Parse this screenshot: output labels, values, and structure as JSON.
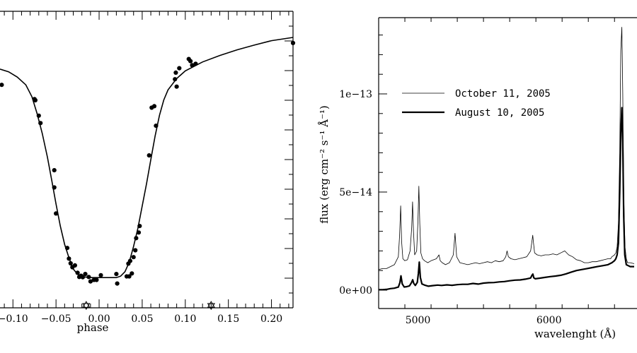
{
  "chart_data": [
    {
      "type": "scatter",
      "title": "",
      "xlabel": "phase",
      "ylabel": "",
      "xlim": [
        -0.115,
        0.225
      ],
      "ylim": [
        0,
        1
      ],
      "x_ticks": [
        -0.1,
        -0.05,
        0.0,
        0.05,
        0.1,
        0.15,
        0.2
      ],
      "x_tick_labels": [
        "−0.10",
        "−0.05",
        "0.00",
        "0.05",
        "0.10",
        "0.15",
        "0.20"
      ],
      "series": [
        {
          "kind": "points",
          "x": [
            -0.113,
            -0.075,
            -0.074,
            -0.07,
            -0.068,
            -0.052,
            -0.052,
            -0.05,
            -0.037,
            -0.035,
            -0.033,
            -0.031,
            -0.028,
            -0.025,
            -0.023,
            -0.021,
            -0.019,
            -0.016,
            -0.012,
            -0.01,
            -0.006,
            -0.003,
            0.002,
            0.02,
            0.021,
            0.032,
            0.034,
            0.035,
            0.036,
            0.038,
            0.04,
            0.042,
            0.043,
            0.046,
            0.047,
            0.058,
            0.061,
            0.064,
            0.066,
            0.088,
            0.089,
            0.09,
            0.093,
            0.104,
            0.106,
            0.108,
            0.112,
            0.225
          ],
          "y": [
            0.752,
            0.704,
            0.7,
            0.648,
            0.623,
            0.464,
            0.406,
            0.318,
            0.202,
            0.166,
            0.15,
            0.137,
            0.143,
            0.118,
            0.104,
            0.108,
            0.103,
            0.114,
            0.104,
            0.089,
            0.094,
            0.094,
            0.11,
            0.114,
            0.082,
            0.106,
            0.149,
            0.106,
            0.158,
            0.116,
            0.171,
            0.194,
            0.235,
            0.254,
            0.276,
            0.514,
            0.675,
            0.68,
            0.614,
            0.771,
            0.793,
            0.746,
            0.808,
            0.839,
            0.832,
            0.818,
            0.823,
            0.893
          ]
        },
        {
          "kind": "line",
          "x": [
            -0.115,
            -0.105,
            -0.095,
            -0.085,
            -0.078,
            -0.072,
            -0.066,
            -0.06,
            -0.055,
            -0.05,
            -0.045,
            -0.04,
            -0.035,
            -0.03,
            -0.025,
            -0.02,
            -0.01,
            0.0,
            0.01,
            0.02,
            0.025,
            0.03,
            0.035,
            0.04,
            0.045,
            0.05,
            0.055,
            0.06,
            0.065,
            0.07,
            0.075,
            0.08,
            0.09,
            0.1,
            0.12,
            0.14,
            0.16,
            0.18,
            0.2,
            0.225
          ],
          "y": [
            0.805,
            0.796,
            0.778,
            0.752,
            0.712,
            0.655,
            0.588,
            0.508,
            0.43,
            0.351,
            0.276,
            0.214,
            0.169,
            0.131,
            0.113,
            0.105,
            0.102,
            0.102,
            0.102,
            0.102,
            0.107,
            0.122,
            0.154,
            0.207,
            0.268,
            0.343,
            0.418,
            0.5,
            0.58,
            0.649,
            0.701,
            0.735,
            0.773,
            0.799,
            0.829,
            0.851,
            0.87,
            0.886,
            0.901,
            0.912
          ]
        },
        {
          "kind": "markers",
          "symbol": "star",
          "x": [
            -0.015,
            0.13
          ],
          "y": [
            0.008,
            0.008
          ]
        }
      ]
    },
    {
      "type": "line",
      "title": "",
      "xlabel": "wavelenght (Å)",
      "ylabel": "flux (erg cm⁻² s⁻¹ Å⁻¹)",
      "xlim": [
        4700,
        6650
      ],
      "ylim": [
        -1e-14,
        1.4e-13
      ],
      "x_ticks": [
        5000,
        6000
      ],
      "x_tick_labels": [
        "5000",
        "6000"
      ],
      "y_ticks": [
        0,
        5e-14,
        1e-13
      ],
      "y_tick_labels": [
        "0e+00",
        "5e−14",
        "1e−13"
      ],
      "legend_position": "top-left",
      "series": [
        {
          "name": "October 11, 2005",
          "color": "#000000",
          "stroke": "thin",
          "x": [
            4700,
            4730,
            4760,
            4790,
            4820,
            4850,
            4860,
            4868,
            4875,
            4885,
            4900,
            4920,
            4940,
            4952,
            4959,
            4966,
            4975,
            4990,
            5000,
            5007,
            5014,
            5022,
            5035,
            5050,
            5075,
            5100,
            5140,
            5160,
            5170,
            5185,
            5210,
            5240,
            5270,
            5283,
            5295,
            5320,
            5350,
            5380,
            5410,
            5440,
            5470,
            5500,
            5530,
            5560,
            5590,
            5620,
            5650,
            5670,
            5680,
            5690,
            5710,
            5740,
            5770,
            5800,
            5830,
            5860,
            5870,
            5876,
            5882,
            5890,
            5910,
            5940,
            5970,
            6000,
            6030,
            6060,
            6090,
            6120,
            6150,
            6180,
            6210,
            6240,
            6270,
            6300,
            6330,
            6360,
            6390,
            6420,
            6450,
            6470,
            6480,
            6490,
            6500,
            6510,
            6520,
            6530,
            6540,
            6548,
            6556,
            6563,
            6570,
            6580,
            6590,
            6600,
            6620,
            6650
          ],
          "y": [
            1.05e-14,
            1.1e-14,
            1.1e-14,
            1.2e-14,
            1.3e-14,
            1.7e-14,
            2.8e-14,
            4.3e-14,
            2.5e-14,
            1.6e-14,
            1.5e-14,
            1.55e-14,
            2e-14,
            3.2e-14,
            4.5e-14,
            3e-14,
            1.8e-14,
            2e-14,
            3.5e-14,
            5.3e-14,
            3.4e-14,
            1.9e-14,
            1.6e-14,
            1.5e-14,
            1.4e-14,
            1.5e-14,
            1.6e-14,
            1.8e-14,
            1.5e-14,
            1.4e-14,
            1.3e-14,
            1.4e-14,
            1.8e-14,
            2.9e-14,
            1.7e-14,
            1.4e-14,
            1.35e-14,
            1.3e-14,
            1.35e-14,
            1.4e-14,
            1.35e-14,
            1.4e-14,
            1.45e-14,
            1.4e-14,
            1.5e-14,
            1.45e-14,
            1.5e-14,
            1.7e-14,
            2e-14,
            1.7e-14,
            1.6e-14,
            1.55e-14,
            1.6e-14,
            1.65e-14,
            1.7e-14,
            2e-14,
            2.5e-14,
            2.8e-14,
            2.4e-14,
            1.9e-14,
            1.8e-14,
            1.75e-14,
            1.8e-14,
            1.8e-14,
            1.85e-14,
            1.8e-14,
            1.9e-14,
            2e-14,
            1.8e-14,
            1.7e-14,
            1.55e-14,
            1.5e-14,
            1.4e-14,
            1.4e-14,
            1.45e-14,
            1.45e-14,
            1.5e-14,
            1.55e-14,
            1.6e-14,
            1.6e-14,
            1.7e-14,
            1.75e-14,
            1.8e-14,
            1.9e-14,
            2.2e-14,
            3.4e-14,
            7e-14,
            1.22e-13,
            1.34e-13,
            1e-13,
            5e-14,
            2.2e-14,
            1.6e-14,
            1.4e-14,
            1.4e-14,
            1.35e-14
          ]
        },
        {
          "name": "August 10, 2005",
          "color": "#000000",
          "stroke": "thick",
          "x": [
            4700,
            4730,
            4760,
            4790,
            4820,
            4850,
            4862,
            4870,
            4880,
            4895,
            4915,
            4935,
            4950,
            4960,
            4968,
            4980,
            4995,
            5003,
            5010,
            5018,
            5030,
            5050,
            5080,
            5110,
            5150,
            5180,
            5220,
            5260,
            5300,
            5340,
            5380,
            5420,
            5460,
            5500,
            5540,
            5580,
            5620,
            5660,
            5700,
            5740,
            5780,
            5820,
            5860,
            5870,
            5877,
            5884,
            5895,
            5930,
            5970,
            6010,
            6050,
            6090,
            6130,
            6170,
            6210,
            6250,
            6290,
            6330,
            6370,
            6410,
            6450,
            6480,
            6500,
            6510,
            6520,
            6530,
            6540,
            6548,
            6556,
            6563,
            6570,
            6578,
            6590,
            6605,
            6620,
            6650
          ],
          "y": [
            2e-16,
            2e-16,
            4e-16,
            8e-16,
            1e-15,
            1.6e-15,
            3.8e-15,
            7.3e-15,
            3.2e-15,
            1.6e-15,
            1.8e-15,
            2.2e-15,
            3.8e-15,
            5.3e-15,
            3.4e-15,
            2.4e-15,
            4e-15,
            8.5e-15,
            1.43e-14,
            6.5e-15,
            3.2e-15,
            2.6e-15,
            2e-15,
            2.3e-15,
            2.6e-15,
            2.4e-15,
            2.7e-15,
            2.5e-15,
            2.8e-15,
            3e-15,
            3e-15,
            3.4e-15,
            3.1e-15,
            3.6e-15,
            3.8e-15,
            3.9e-15,
            4.2e-15,
            4.4e-15,
            4.8e-15,
            5.1e-15,
            5.2e-15,
            5.6e-15,
            6.2e-15,
            7.6e-15,
            8.2e-15,
            6.3e-15,
            5.8e-15,
            6.1e-15,
            6.5e-15,
            6.9e-15,
            7.2e-15,
            7.6e-15,
            8.3e-15,
            9.2e-15,
            1e-14,
            1.05e-14,
            1.1e-14,
            1.15e-14,
            1.2e-14,
            1.25e-14,
            1.3e-14,
            1.4e-14,
            1.5e-14,
            1.6e-14,
            1.8e-14,
            2.4e-14,
            5e-14,
            8e-14,
            9.3e-14,
            7.5e-14,
            3.8e-14,
            1.8e-14,
            1.3e-14,
            1.25e-14,
            1.2e-14,
            1.2e-14
          ]
        }
      ]
    }
  ]
}
